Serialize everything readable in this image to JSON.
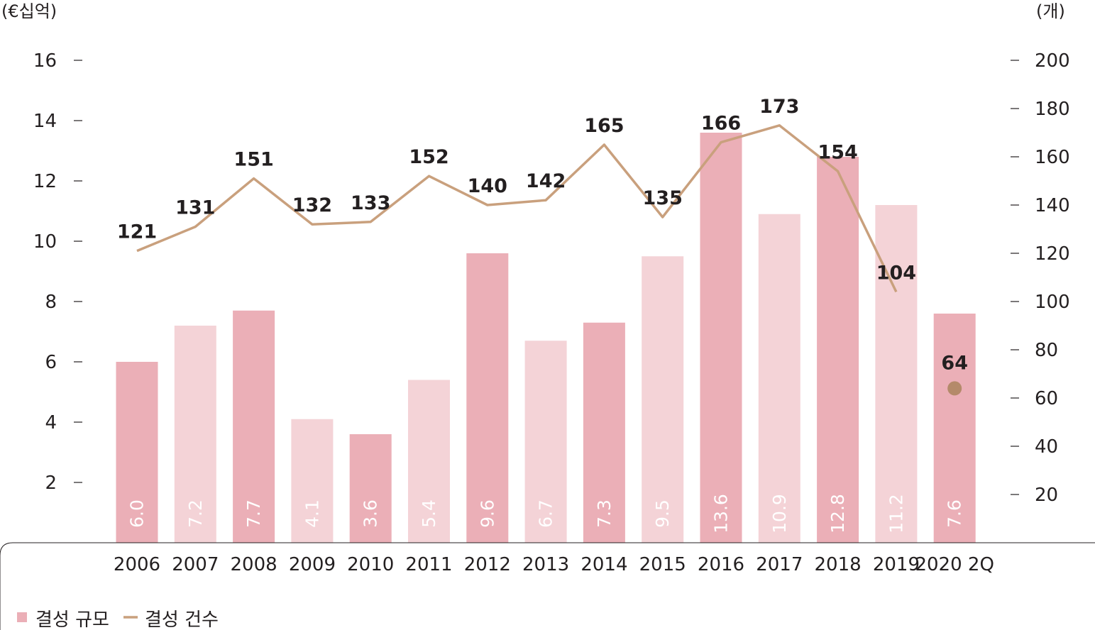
{
  "chart_data": {
    "type": "bar+line",
    "left_unit": "(€십억)",
    "right_unit": "(개)",
    "categories": [
      "2006",
      "2007",
      "2008",
      "2009",
      "2010",
      "2011",
      "2012",
      "2013",
      "2014",
      "2015",
      "2016",
      "2017",
      "2018",
      "2019",
      "2020 2Q"
    ],
    "series": [
      {
        "name": "결성 규모",
        "type": "bar",
        "axis": "left",
        "values": [
          6.0,
          7.2,
          7.7,
          4.1,
          3.6,
          5.4,
          9.6,
          6.7,
          7.3,
          9.5,
          13.6,
          10.9,
          12.8,
          11.2,
          7.6
        ],
        "labels": [
          "6.0",
          "7.2",
          "7.7",
          "4.1",
          "3.6",
          "5.4",
          "9.6",
          "6.7",
          "7.3",
          "9.5",
          "13.6",
          "10.9",
          "12.8",
          "11.2",
          "7.6"
        ]
      },
      {
        "name": "결성 건수",
        "type": "line",
        "axis": "right",
        "values": [
          121,
          131,
          151,
          132,
          133,
          152,
          140,
          142,
          165,
          135,
          166,
          173,
          154,
          104,
          64
        ],
        "labels": [
          "121",
          "131",
          "151",
          "132",
          "133",
          "152",
          "140",
          "142",
          "165",
          "135",
          "166",
          "173",
          "154",
          "104",
          "64"
        ]
      }
    ],
    "left_axis": {
      "range": [
        0,
        16
      ],
      "ticks": [
        2,
        4,
        6,
        8,
        10,
        12,
        14,
        16
      ]
    },
    "right_axis": {
      "range": [
        0,
        200
      ],
      "ticks": [
        20,
        40,
        60,
        80,
        100,
        120,
        140,
        160,
        180,
        200
      ]
    },
    "bar_colors": [
      "#ebafb7",
      "#f4d3d7"
    ],
    "line_color": "#c9a07d",
    "point_color": "#b48a6a",
    "legend_position": "bottom-left",
    "grid": false
  }
}
